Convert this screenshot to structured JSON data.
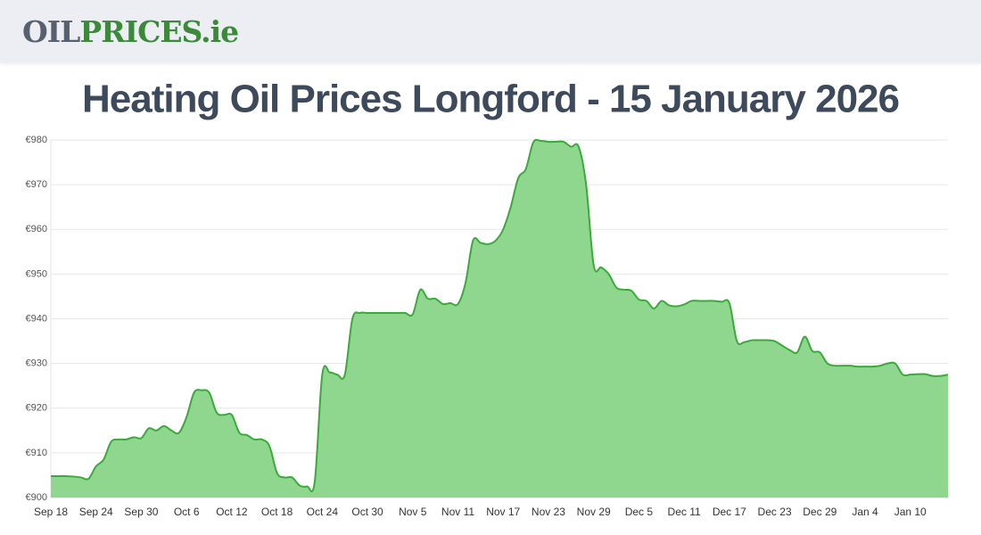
{
  "header": {
    "logo_dark": "OIL",
    "logo_green": "PRICES.ie"
  },
  "chart_data": {
    "type": "area",
    "title": "Heating Oil Prices Longford - 15 January 2026",
    "categories": [
      "Sep 18",
      null,
      null,
      null,
      null,
      null,
      "Sep 24",
      null,
      null,
      null,
      null,
      null,
      "Sep 30",
      null,
      null,
      null,
      null,
      null,
      "Oct 6",
      null,
      null,
      null,
      null,
      null,
      "Oct 12",
      null,
      null,
      null,
      null,
      null,
      "Oct 18",
      null,
      null,
      null,
      null,
      null,
      "Oct 24",
      null,
      null,
      null,
      null,
      null,
      "Oct 30",
      null,
      null,
      null,
      null,
      null,
      "Nov 5",
      null,
      null,
      null,
      null,
      null,
      "Nov 11",
      null,
      null,
      null,
      null,
      null,
      "Nov 17",
      null,
      null,
      null,
      null,
      null,
      "Nov 23",
      null,
      null,
      null,
      null,
      null,
      "Nov 29",
      null,
      null,
      null,
      null,
      null,
      "Dec 5",
      null,
      null,
      null,
      null,
      null,
      "Dec 11",
      null,
      null,
      null,
      null,
      null,
      "Dec 17",
      null,
      null,
      null,
      null,
      null,
      "Dec 23",
      null,
      null,
      null,
      null,
      null,
      "Dec 29",
      null,
      null,
      null,
      null,
      null,
      "Jan 4",
      null,
      null,
      null,
      null,
      null,
      "Jan 10",
      null,
      null,
      null,
      null,
      null
    ],
    "values": [
      904.8,
      904.8,
      904.8,
      904.7,
      904.5,
      904.2,
      907,
      908.5,
      912.5,
      913,
      913,
      913.5,
      913.3,
      915.5,
      915,
      916,
      915,
      914.5,
      918,
      923.5,
      924,
      923.5,
      919,
      918.5,
      918.5,
      914.5,
      914,
      913,
      913,
      911.5,
      905.5,
      904.5,
      904.5,
      902.7,
      902.5,
      903.5,
      927.5,
      928,
      927.5,
      927.5,
      940,
      941.3,
      941.3,
      941.3,
      941.3,
      941.3,
      941.3,
      941.3,
      941,
      946.5,
      944.5,
      944.5,
      943.3,
      943.5,
      943.3,
      948,
      957.5,
      957,
      956.7,
      957.5,
      960,
      965,
      971.5,
      973.5,
      979.5,
      979.8,
      979.6,
      979.6,
      979.6,
      978.5,
      978.5,
      970,
      952,
      951.5,
      950,
      947,
      946.5,
      946.3,
      944.3,
      944,
      942.3,
      944,
      943,
      942.8,
      943.2,
      944,
      944,
      944,
      944,
      943.8,
      943.5,
      935,
      934.8,
      935.2,
      935.2,
      935.2,
      935,
      934,
      933,
      932.5,
      936,
      932.8,
      932.5,
      930,
      929.5,
      929.5,
      929.5,
      929.3,
      929.3,
      929.3,
      929.5,
      930,
      930,
      927.5,
      927.5,
      927.6,
      927.6,
      927.2,
      927.2,
      927.5
    ],
    "color": "#3aaa3a",
    "fill": "#8fd68f",
    "ylim": [
      900,
      980
    ],
    "yticks": [
      {
        "value": 900,
        "label": "€900"
      },
      {
        "value": 910,
        "label": "€910"
      },
      {
        "value": 920,
        "label": "€920"
      },
      {
        "value": 930,
        "label": "€930"
      },
      {
        "value": 940,
        "label": "€940"
      },
      {
        "value": 950,
        "label": "€950"
      },
      {
        "value": 960,
        "label": "€960"
      },
      {
        "value": 970,
        "label": "€970"
      },
      {
        "value": 980,
        "label": "€980"
      }
    ],
    "grid": true
  }
}
